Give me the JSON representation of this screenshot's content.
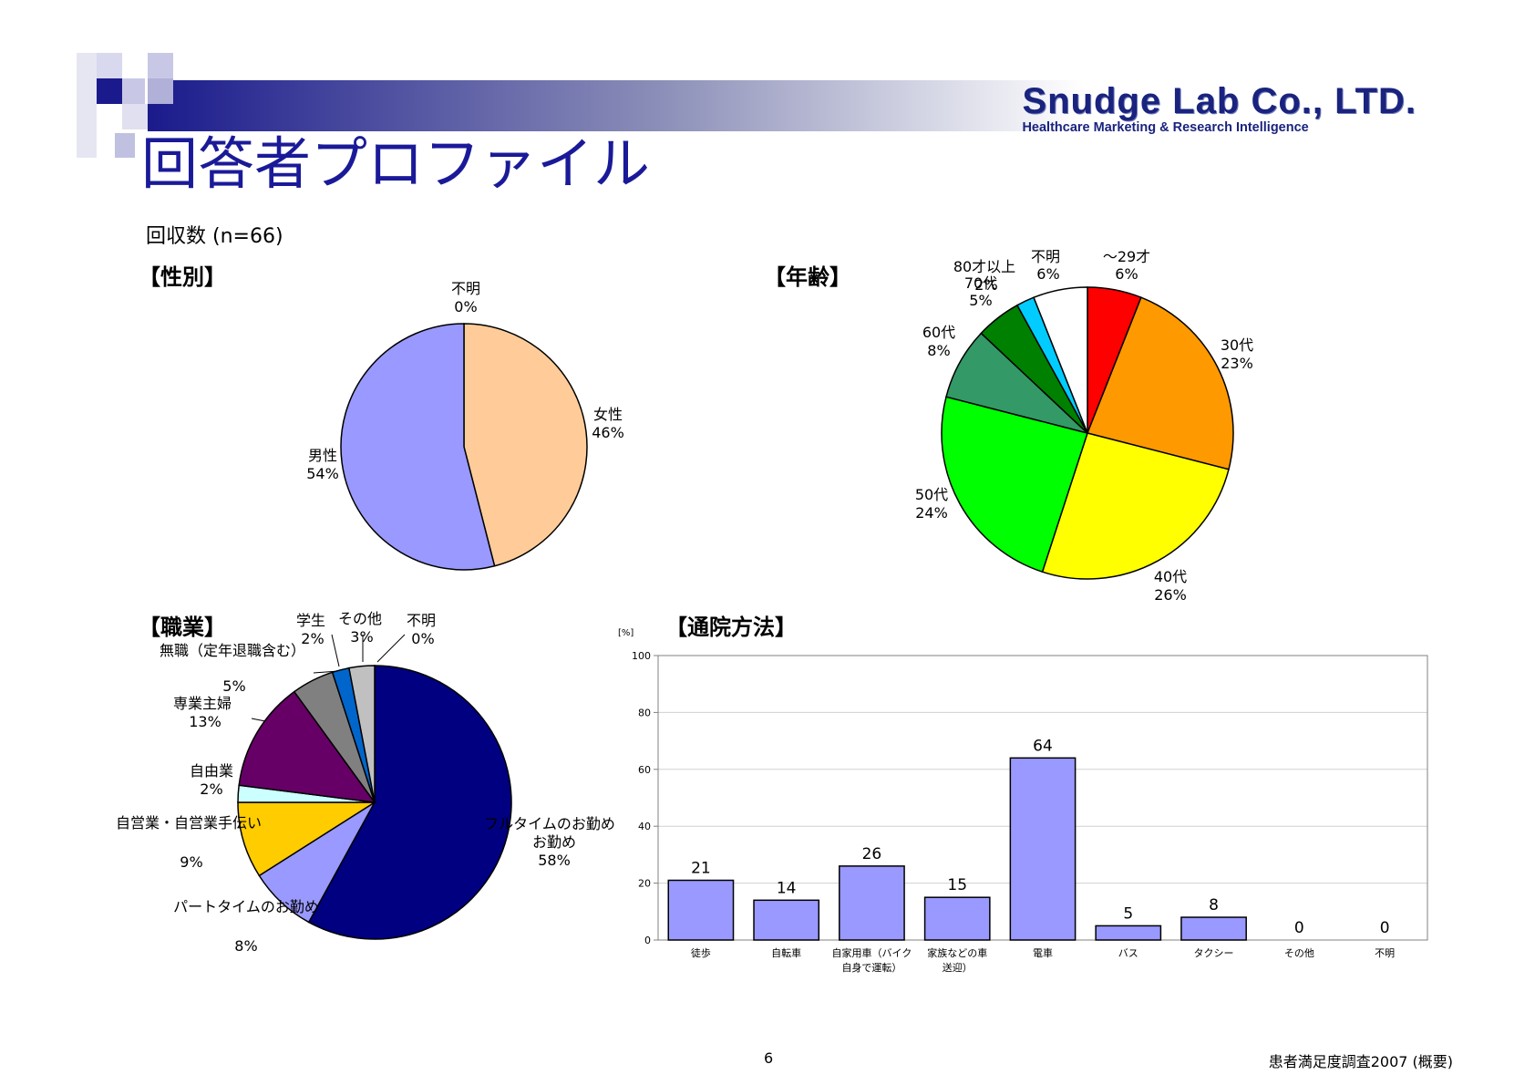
{
  "header": {
    "company_name": "Snudge Lab Co., LTD.",
    "company_tagline": "Healthcare Marketing & Research Intelligence",
    "page_title": "回答者プロファイル",
    "response_count": "回収数 (n=66)"
  },
  "colors": {
    "title": "#1a1a99",
    "logo": "#1a237e",
    "bar_fill": "#9999ff"
  },
  "footer": {
    "page_number": "6",
    "report_title": "患者満足度調査2007 (概要)"
  },
  "chart_data": [
    {
      "type": "pie",
      "title": "【性別】",
      "slices": [
        {
          "name": "女性",
          "value": 46,
          "label": "46%",
          "color": "#ffcc99"
        },
        {
          "name": "男性",
          "value": 54,
          "label": "54%",
          "color": "#9999ff"
        },
        {
          "name": "不明",
          "value": 0,
          "label": "0%",
          "color": "#ffffff"
        }
      ]
    },
    {
      "type": "pie",
      "title": "【年齢】",
      "slices": [
        {
          "name": "～29才",
          "value": 6,
          "label": "6%",
          "color": "#ff0000"
        },
        {
          "name": "30代",
          "value": 23,
          "label": "23%",
          "color": "#ff9900"
        },
        {
          "name": "40代",
          "value": 26,
          "label": "26%",
          "color": "#ffff00"
        },
        {
          "name": "50代",
          "value": 24,
          "label": "24%",
          "color": "#00ff00"
        },
        {
          "name": "60代",
          "value": 8,
          "label": "8%",
          "color": "#339966"
        },
        {
          "name": "70代",
          "value": 5,
          "label": "5%",
          "color": "#008000"
        },
        {
          "name": "80才以上",
          "value": 2,
          "label": "2%",
          "color": "#00ccff"
        },
        {
          "name": "不明",
          "value": 6,
          "label": "6%",
          "color": "#ffffff"
        }
      ]
    },
    {
      "type": "pie",
      "title": "【職業】",
      "slices": [
        {
          "name": "フルタイムのお勤め",
          "value": 58,
          "label": "58%",
          "color": "#000080"
        },
        {
          "name": "パートタイムのお勤め",
          "value": 8,
          "label": "8%",
          "color": "#9999ff"
        },
        {
          "name": "自営業・自営業手伝い",
          "value": 9,
          "label": "9%",
          "color": "#ffcc00"
        },
        {
          "name": "自由業",
          "value": 2,
          "label": "2%",
          "color": "#ccffff"
        },
        {
          "name": "専業主婦",
          "value": 13,
          "label": "13%",
          "color": "#660066"
        },
        {
          "name": "無職（定年退職含む）",
          "value": 5,
          "label": "5%",
          "color": "#808080"
        },
        {
          "name": "学生",
          "value": 2,
          "label": "2%",
          "color": "#0066cc"
        },
        {
          "name": "その他",
          "value": 3,
          "label": "3%",
          "color": "#c0c0c0"
        },
        {
          "name": "不明",
          "value": 0,
          "label": "0%",
          "color": "#ffffff"
        }
      ]
    },
    {
      "type": "bar",
      "title": "【通院方法】",
      "unit_label": "[%]",
      "categories": [
        "徒歩",
        "自転車",
        "自家用車（バイク自身で運転）",
        "家族などの車送迎）",
        "電車",
        "バス",
        "タクシー",
        "その他",
        "不明"
      ],
      "values": [
        21,
        14,
        26,
        15,
        64,
        5,
        8,
        0,
        0
      ],
      "ylim": [
        0,
        100
      ],
      "yticks": [
        0,
        20,
        40,
        60,
        80,
        100
      ],
      "grid": true
    }
  ]
}
